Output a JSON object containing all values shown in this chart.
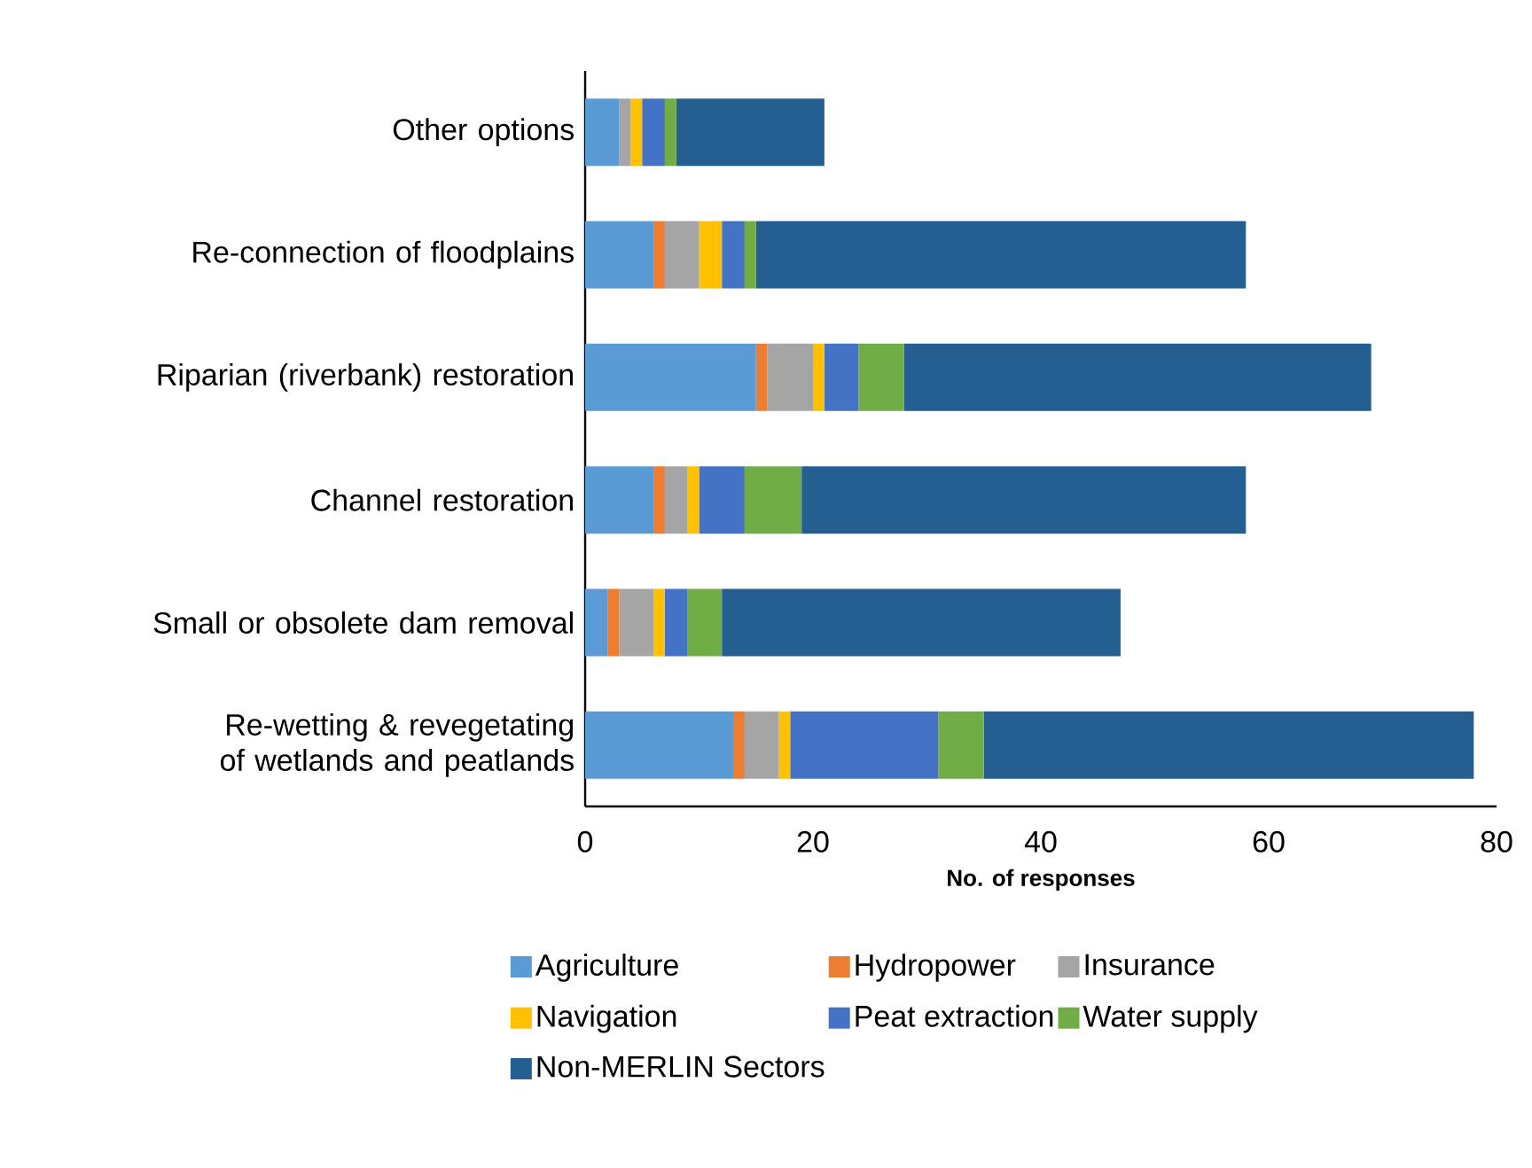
{
  "chart_data": {
    "type": "bar",
    "orientation": "horizontal",
    "stacked": true,
    "xlabel": "No. of responses",
    "categories": [
      "Other options",
      "Re-connection of floodplains",
      "Riparian (riverbank) restoration",
      "Channel restoration",
      "Small or obsolete dam removal",
      "Re-wetting & revegetating of wetlands and peatlands"
    ],
    "series": [
      {
        "name": "Agriculture",
        "color": "#5b9bd5",
        "values": [
          3,
          6,
          15,
          6,
          2,
          13
        ]
      },
      {
        "name": "Hydropower",
        "color": "#ed7d31",
        "values": [
          0,
          1,
          1,
          1,
          1,
          1
        ]
      },
      {
        "name": "Insurance",
        "color": "#a5a5a5",
        "values": [
          1,
          3,
          4,
          2,
          3,
          3
        ]
      },
      {
        "name": "Navigation",
        "color": "#ffc000",
        "values": [
          1,
          2,
          1,
          1,
          1,
          1
        ]
      },
      {
        "name": "Peat extraction",
        "color": "#4472c4",
        "values": [
          2,
          2,
          3,
          4,
          2,
          13
        ]
      },
      {
        "name": "Water supply",
        "color": "#70ad47",
        "values": [
          1,
          1,
          4,
          5,
          3,
          4
        ]
      },
      {
        "name": "Non-MERLIN Sectors",
        "color": "#255e91",
        "values": [
          13,
          43,
          41,
          39,
          35,
          43
        ]
      }
    ],
    "xlim": [
      0,
      80
    ],
    "xticks": [
      0,
      20,
      40,
      60,
      80
    ],
    "grid": false,
    "legend": "bottom"
  }
}
